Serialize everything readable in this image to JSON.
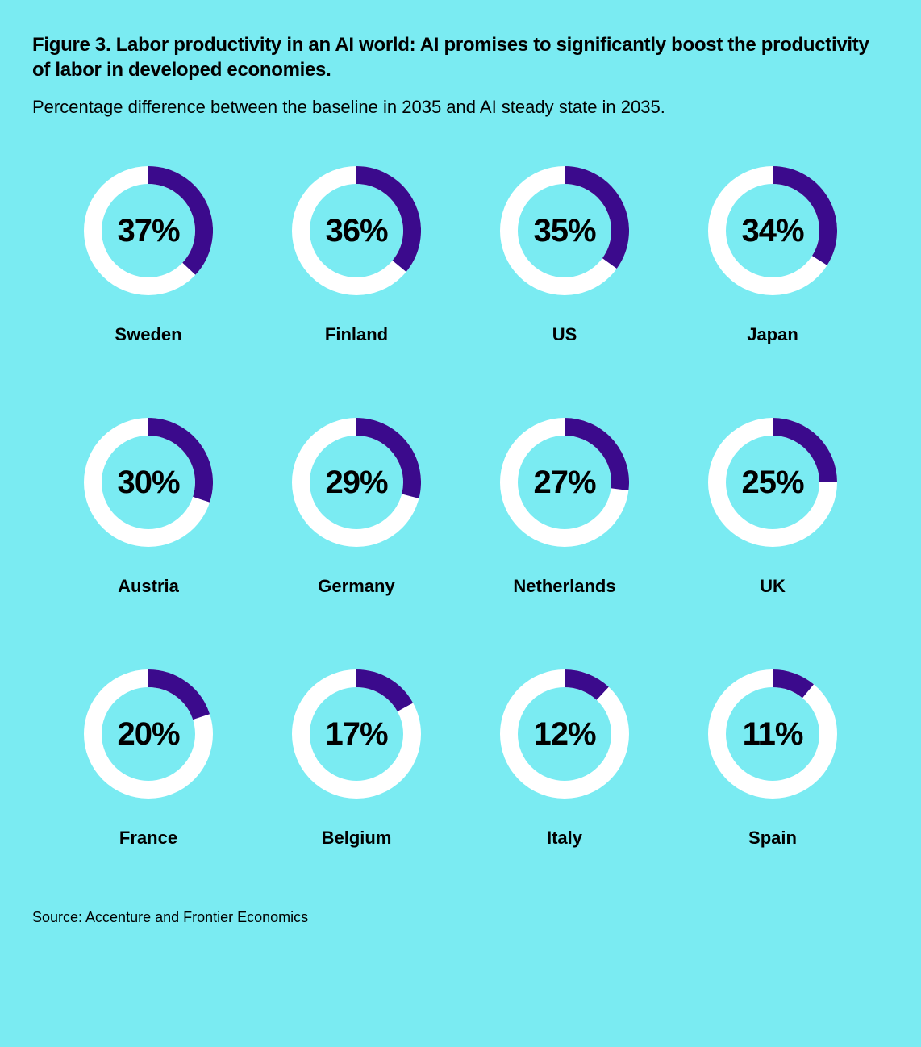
{
  "background_color": "#7aebf2",
  "title": "Figure 3. Labor productivity in an AI world: AI promises to significantly boost the productivity of labor in developed economies.",
  "title_fontsize": 24,
  "title_color": "#000000",
  "subtitle": "Percentage difference between the baseline in 2035 and AI steady state in 2035.",
  "subtitle_fontsize": 22,
  "subtitle_color": "#000000",
  "source": "Source: Accenture and Frontier Economics",
  "source_fontsize": 18,
  "source_color": "#000000",
  "chart": {
    "type": "donut-grid",
    "columns": 4,
    "row_gap": 90,
    "column_gap": 20,
    "donut_size": 160,
    "donut_stroke_width": 22,
    "ring_color": "#ffffff",
    "arc_color": "#3b0a8c",
    "value_fontsize": 40,
    "value_color": "#000000",
    "label_fontsize": 22,
    "label_color": "#000000",
    "label_margin_top": 36,
    "items": [
      {
        "country": "Sweden",
        "value": 37,
        "display": "37%"
      },
      {
        "country": "Finland",
        "value": 36,
        "display": "36%"
      },
      {
        "country": "US",
        "value": 35,
        "display": "35%"
      },
      {
        "country": "Japan",
        "value": 34,
        "display": "34%"
      },
      {
        "country": "Austria",
        "value": 30,
        "display": "30%"
      },
      {
        "country": "Germany",
        "value": 29,
        "display": "29%"
      },
      {
        "country": "Netherlands",
        "value": 27,
        "display": "27%"
      },
      {
        "country": "UK",
        "value": 25,
        "display": "25%"
      },
      {
        "country": "France",
        "value": 20,
        "display": "20%"
      },
      {
        "country": "Belgium",
        "value": 17,
        "display": "17%"
      },
      {
        "country": "Italy",
        "value": 12,
        "display": "12%"
      },
      {
        "country": "Spain",
        "value": 11,
        "display": "11%"
      }
    ]
  }
}
